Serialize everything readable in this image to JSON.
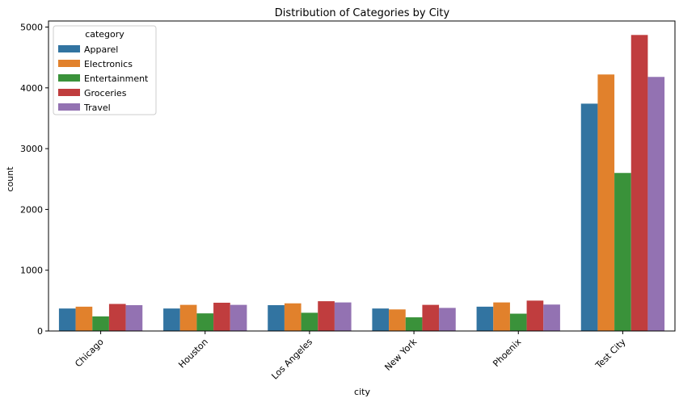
{
  "chart_data": {
    "type": "bar",
    "title": "Distribution of Categories by City",
    "xlabel": "city",
    "ylabel": "count",
    "categories": [
      "Chicago",
      "Houston",
      "Los Angeles",
      "New York",
      "Phoenix",
      "Test City"
    ],
    "ylim": [
      0,
      5100
    ],
    "yticks": [
      0,
      1000,
      2000,
      3000,
      4000,
      5000
    ],
    "legend": {
      "title": "category",
      "placement": "top-left"
    },
    "series": [
      {
        "name": "Apparel",
        "color": "#3274a1",
        "values": [
          370,
          370,
          425,
          370,
          400,
          3740
        ]
      },
      {
        "name": "Electronics",
        "color": "#e1812c",
        "values": [
          400,
          430,
          455,
          355,
          470,
          4220
        ]
      },
      {
        "name": "Entertainment",
        "color": "#3a923a",
        "values": [
          240,
          290,
          300,
          225,
          285,
          2600
        ]
      },
      {
        "name": "Groceries",
        "color": "#c03d3e",
        "values": [
          445,
          465,
          490,
          430,
          500,
          4870
        ]
      },
      {
        "name": "Travel",
        "color": "#9372b2",
        "values": [
          425,
          430,
          470,
          380,
          435,
          4180
        ]
      }
    ]
  }
}
